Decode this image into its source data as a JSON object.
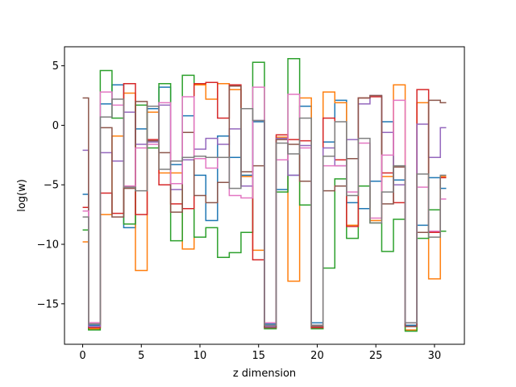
{
  "chart_data": {
    "type": "line",
    "drawstyle": "steps-mid",
    "title": "",
    "xlabel": "z dimension",
    "ylabel": "log(w)",
    "xlim": [
      -1.55,
      32.55
    ],
    "ylim": [
      -18.4,
      6.6
    ],
    "xticks": [
      0,
      5,
      10,
      15,
      20,
      25,
      30
    ],
    "yticks": [
      -15,
      -10,
      -5,
      0,
      5
    ],
    "grid": false,
    "legend": "none",
    "x": [
      0,
      1,
      2,
      3,
      4,
      5,
      6,
      7,
      8,
      9,
      10,
      11,
      12,
      13,
      14,
      15,
      16,
      17,
      18,
      19,
      20,
      21,
      22,
      23,
      24,
      25,
      26,
      27,
      28,
      29,
      30,
      31
    ],
    "series": [
      {
        "color": "#1f77b4",
        "values": [
          -5.8,
          -16.8,
          1.8,
          3.4,
          -8.6,
          -0.3,
          1.4,
          3.2,
          -3.3,
          0.8,
          -4.2,
          -8.0,
          -0.9,
          -2.7,
          -4.2,
          0.3,
          -16.7,
          -5.4,
          -4.2,
          1.6,
          -16.6,
          -1.4,
          2.1,
          -6.5,
          -7.0,
          -4.7,
          0.3,
          -4.6,
          -16.8,
          -8.4,
          -4.4,
          -5.3
        ]
      },
      {
        "color": "#ff7f0e",
        "values": [
          -9.8,
          -17.1,
          -7.5,
          -0.9,
          2.7,
          -12.2,
          1.1,
          -4.0,
          -4.0,
          -10.4,
          3.4,
          2.2,
          3.5,
          3.0,
          -4.3,
          -10.5,
          -16.9,
          -1.0,
          -13.1,
          2.3,
          -17.0,
          2.8,
          1.9,
          -8.4,
          -5.1,
          -8.0,
          -4.3,
          3.4,
          -17.2,
          1.9,
          -12.9,
          -4.3
        ]
      },
      {
        "color": "#2ca02c",
        "values": [
          -8.8,
          -17.2,
          4.6,
          0.6,
          -8.3,
          1.7,
          -1.9,
          3.5,
          -9.7,
          4.2,
          -9.4,
          -8.6,
          -11.1,
          -10.7,
          -9.0,
          5.3,
          -17.1,
          -5.6,
          5.6,
          -6.7,
          -17.1,
          -12.0,
          -4.5,
          -9.5,
          -5.1,
          -8.2,
          -10.6,
          -7.9,
          -17.3,
          -9.5,
          -7.1,
          -8.9
        ]
      },
      {
        "color": "#d62728",
        "values": [
          -6.9,
          -17.0,
          -5.7,
          -7.4,
          3.5,
          -7.5,
          -1.2,
          -5.0,
          -6.6,
          -7.0,
          3.5,
          3.6,
          0.6,
          3.4,
          -5.1,
          -11.3,
          -17.0,
          -0.8,
          -1.2,
          -1.3,
          -17.0,
          0.6,
          -2.9,
          -8.5,
          2.3,
          2.4,
          -4.0,
          -6.5,
          -16.9,
          3.0,
          -9.0,
          -4.4
        ]
      },
      {
        "color": "#9467bd",
        "values": [
          -2.1,
          -16.9,
          -2.3,
          -3.0,
          1.1,
          -1.6,
          -1.4,
          1.7,
          -5.4,
          -2.9,
          -2.0,
          -1.1,
          -1.6,
          -0.3,
          -5.1,
          0.4,
          -16.9,
          -1.1,
          -4.2,
          -1.7,
          -16.9,
          -1.9,
          -3.4,
          -1.2,
          1.8,
          2.5,
          -0.6,
          -5.0,
          -16.9,
          0.1,
          -2.7,
          -0.2
        ]
      },
      {
        "color": "#8c564b",
        "values": [
          2.3,
          -16.6,
          -0.2,
          -7.7,
          -5.3,
          2.0,
          -1.3,
          -2.3,
          -7.3,
          -0.6,
          -5.9,
          -6.5,
          -4.8,
          3.3,
          -3.9,
          -3.4,
          -17.0,
          -1.2,
          -1.6,
          -4.7,
          -16.9,
          -5.5,
          -5.1,
          -2.8,
          2.3,
          2.5,
          -6.6,
          -3.5,
          -16.9,
          -9.0,
          2.1,
          1.9
        ]
      },
      {
        "color": "#e377c2",
        "values": [
          -7.2,
          -16.6,
          2.8,
          1.7,
          -5.1,
          -1.9,
          -1.6,
          1.9,
          -4.9,
          2.4,
          -2.8,
          -3.6,
          -2.7,
          -5.9,
          -6.1,
          3.2,
          -16.6,
          -2.9,
          2.6,
          -1.9,
          -16.8,
          -3.4,
          -3.4,
          -5.6,
          -1.5,
          -7.8,
          -2.5,
          2.1,
          -16.6,
          -5.2,
          -8.9,
          -6.2
        ]
      },
      {
        "color": "#7f7f7f",
        "values": [
          -7.7,
          -16.7,
          0.7,
          2.2,
          -5.2,
          -5.5,
          1.6,
          -3.7,
          -3.0,
          -2.7,
          -2.6,
          -2.7,
          -2.7,
          -5.3,
          1.4,
          0.4,
          -16.8,
          -1.5,
          -2.4,
          0.6,
          -16.8,
          -2.6,
          0.3,
          -5.9,
          -1.1,
          -8.2,
          -5.6,
          -3.4,
          -16.6,
          -4.1,
          -9.4,
          -4.2
        ]
      }
    ]
  }
}
